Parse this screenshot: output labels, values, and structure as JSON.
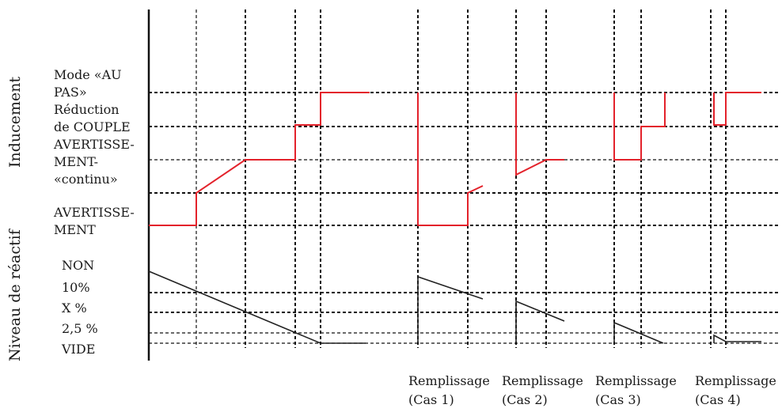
{
  "axis_titles": {
    "upper": "Inducement",
    "lower": "Niveau de réactif"
  },
  "inducement_levels": [
    {
      "lines": [
        "Mode «AU",
        "PAS»"
      ]
    },
    {
      "lines": [
        "Réduction",
        "de COUPLE"
      ]
    },
    {
      "lines": [
        "AVERTISSE-",
        "MENT-",
        "«continu»"
      ]
    },
    {
      "lines": [
        "AVERTISSE-",
        "MENT"
      ]
    }
  ],
  "reagent_levels": [
    "NON",
    "10%",
    "X %",
    "2,5 %",
    "VIDE"
  ],
  "refill_cases": [
    {
      "title": "Remplissage",
      "case": "(Cas 1)"
    },
    {
      "title": "Remplissage",
      "case": "(Cas 2)"
    },
    {
      "title": "Remplissage",
      "case": "(Cas 3)"
    },
    {
      "title": "Remplissage",
      "case": "(Cas 4)"
    }
  ],
  "colors": {
    "inducement_trace": "#e3222b",
    "reagent_trace": "#222222",
    "grid": "#111111"
  }
}
